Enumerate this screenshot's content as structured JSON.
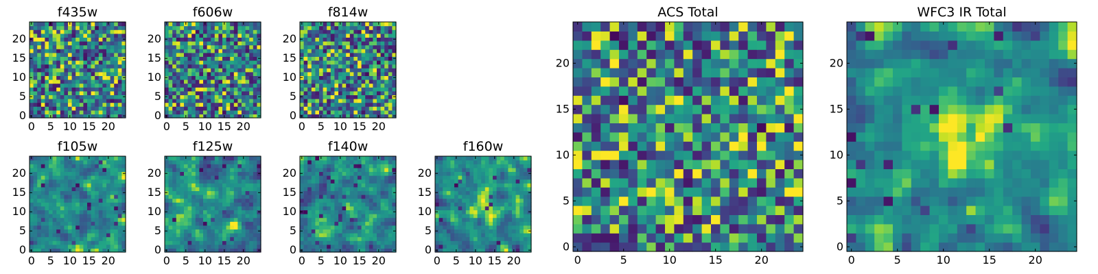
{
  "chart_data": [
    {
      "type": "heatmap",
      "title": "f435w",
      "size": 25,
      "seed": 11,
      "mode": "noise",
      "xticks": [
        0,
        5,
        10,
        15,
        20
      ],
      "yticks": [
        0,
        5,
        10,
        15,
        20
      ],
      "colormap": "viridis"
    },
    {
      "type": "heatmap",
      "title": "f606w",
      "size": 25,
      "seed": 23,
      "mode": "noise",
      "xticks": [
        0,
        5,
        10,
        15,
        20
      ],
      "yticks": [
        0,
        5,
        10,
        15,
        20
      ],
      "colormap": "viridis"
    },
    {
      "type": "heatmap",
      "title": "f814w",
      "size": 25,
      "seed": 37,
      "mode": "noise",
      "xticks": [
        0,
        5,
        10,
        15,
        20
      ],
      "yticks": [
        0,
        5,
        10,
        15,
        20
      ],
      "colormap": "viridis"
    },
    {
      "type": "heatmap",
      "title": "f105w",
      "size": 25,
      "seed": 41,
      "mode": "smooth",
      "xticks": [
        0,
        5,
        10,
        15,
        20
      ],
      "yticks": [
        0,
        5,
        10,
        15,
        20
      ],
      "colormap": "viridis"
    },
    {
      "type": "heatmap",
      "title": "f125w",
      "size": 25,
      "seed": 53,
      "mode": "smooth",
      "xticks": [
        0,
        5,
        10,
        15,
        20
      ],
      "yticks": [
        0,
        5,
        10,
        15,
        20
      ],
      "colormap": "viridis"
    },
    {
      "type": "heatmap",
      "title": "f140w",
      "size": 25,
      "seed": 67,
      "mode": "smooth",
      "xticks": [
        0,
        5,
        10,
        15,
        20
      ],
      "yticks": [
        0,
        5,
        10,
        15,
        20
      ],
      "colormap": "viridis"
    },
    {
      "type": "heatmap",
      "title": "f160w",
      "size": 25,
      "seed": 79,
      "mode": "blob",
      "xticks": [
        0,
        5,
        10,
        15,
        20
      ],
      "yticks": [
        0,
        5,
        10,
        15,
        20
      ],
      "colormap": "viridis"
    },
    {
      "type": "heatmap",
      "title": "ACS Total",
      "size": 25,
      "seed": 97,
      "mode": "noise",
      "xticks": [
        0,
        5,
        10,
        15,
        20
      ],
      "yticks": [
        0,
        5,
        10,
        15,
        20
      ],
      "colormap": "viridis"
    },
    {
      "type": "heatmap",
      "title": "WFC3 IR Total",
      "size": 25,
      "seed": 113,
      "mode": "blob",
      "xticks": [
        0,
        5,
        10,
        15,
        20
      ],
      "yticks": [
        0,
        5,
        10,
        15,
        20
      ],
      "colormap": "viridis"
    }
  ]
}
